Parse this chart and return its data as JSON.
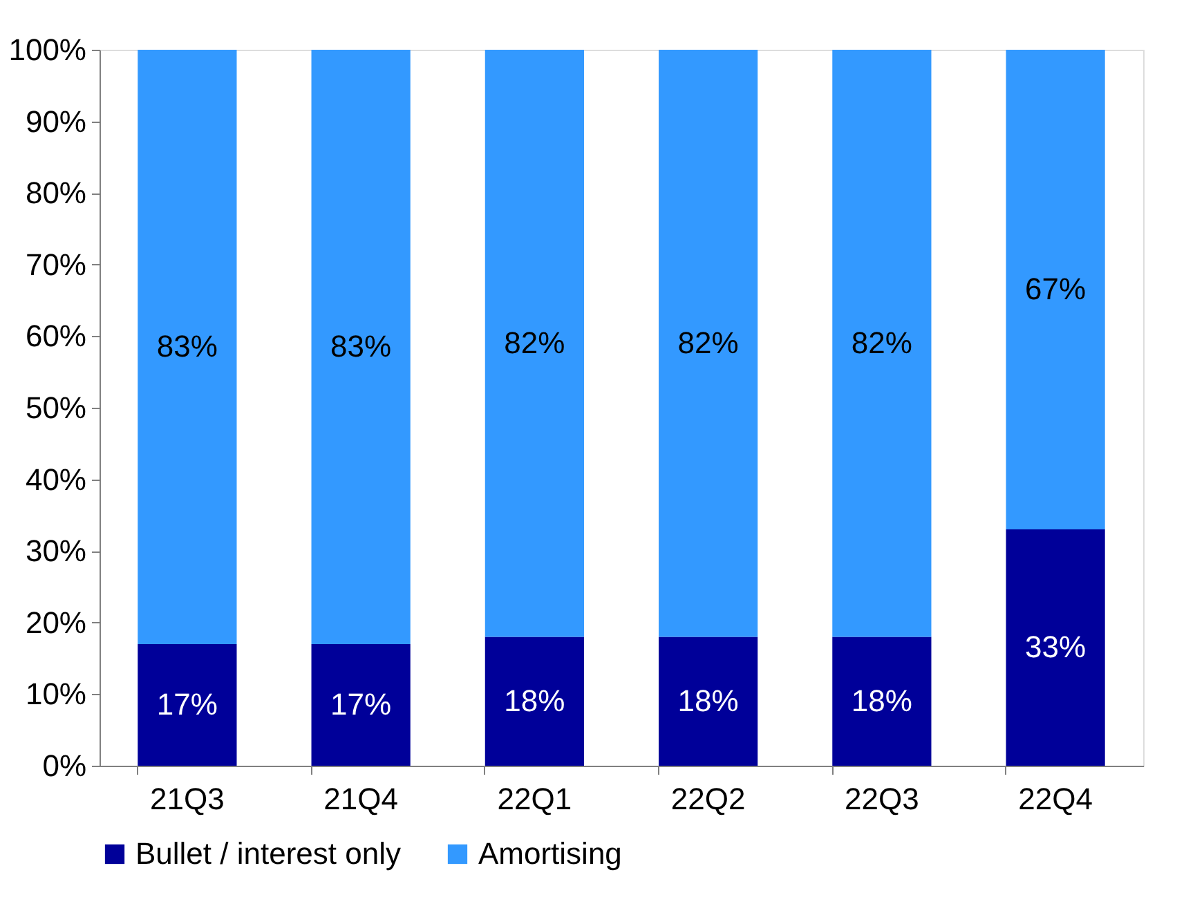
{
  "chart_data": {
    "type": "bar",
    "stacked": true,
    "categories": [
      "21Q3",
      "21Q4",
      "22Q1",
      "22Q2",
      "22Q3",
      "22Q4"
    ],
    "series": [
      {
        "name": "Bullet / interest only",
        "color": "#000099",
        "values": [
          17,
          17,
          18,
          18,
          18,
          33
        ],
        "value_labels": [
          "17%",
          "17%",
          "18%",
          "18%",
          "18%",
          "33%"
        ]
      },
      {
        "name": "Amortising",
        "color": "#3399ff",
        "values": [
          83,
          83,
          82,
          82,
          82,
          67
        ],
        "value_labels": [
          "83%",
          "83%",
          "82%",
          "82%",
          "82%",
          "67%"
        ]
      }
    ],
    "ylim": [
      0,
      100
    ],
    "yticks": [
      {
        "value": 0,
        "label": "0%"
      },
      {
        "value": 10,
        "label": "10%"
      },
      {
        "value": 20,
        "label": "20%"
      },
      {
        "value": 30,
        "label": "30%"
      },
      {
        "value": 40,
        "label": "40%"
      },
      {
        "value": 50,
        "label": "50%"
      },
      {
        "value": 60,
        "label": "60%"
      },
      {
        "value": 70,
        "label": "70%"
      },
      {
        "value": 80,
        "label": "80%"
      },
      {
        "value": 90,
        "label": "90%"
      },
      {
        "value": 100,
        "label": "100%"
      }
    ],
    "grid": false,
    "legend": "bottom"
  }
}
